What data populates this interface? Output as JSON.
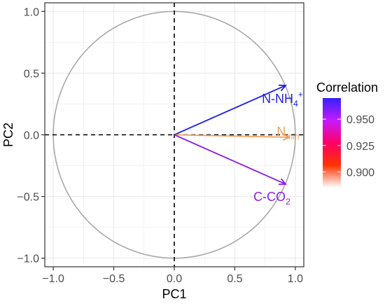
{
  "chart_data": {
    "type": "scatter",
    "subtype": "pca-correlation-circle",
    "xlabel": "PC1",
    "ylabel": "PC2",
    "xlim": [
      -1.07,
      1.07
    ],
    "ylim": [
      -1.07,
      1.07
    ],
    "x_ticks": [
      -1.0,
      -0.5,
      0.0,
      0.5,
      1.0
    ],
    "y_ticks": [
      -1.0,
      -0.5,
      0.0,
      0.5,
      1.0
    ],
    "x_tick_labels": [
      "−1.0",
      "−0.5",
      "0.0",
      "0.5",
      "1.0"
    ],
    "y_tick_labels": [
      "−1.0",
      "−0.5",
      "0.0",
      "0.5",
      "1.0"
    ],
    "grid": true,
    "unit_circle": true,
    "vectors": [
      {
        "label_base": "N-NH",
        "label_sub": "4",
        "label_sup": "+",
        "x": 0.92,
        "y": 0.4,
        "correlation": 0.968,
        "color": "#1f1fe6"
      },
      {
        "label_base": "N",
        "label_sub": "min",
        "label_sup": "",
        "x": 0.95,
        "y": -0.02,
        "correlation": 0.89,
        "color": "#f2a05a"
      },
      {
        "label_base": "C-CO",
        "label_sub": "2",
        "label_sup": "",
        "x": 0.92,
        "y": -0.4,
        "correlation": 0.962,
        "color": "#8a1ee8"
      }
    ],
    "legend": {
      "title": "Correlation",
      "position": "right",
      "min": 0.885,
      "max": 0.97,
      "ticks": [
        0.95,
        0.925,
        0.9
      ],
      "tick_labels": [
        "0.950",
        "0.925",
        "0.900"
      ],
      "colors": [
        "#ffffff",
        "#ff3300",
        "#ff0066",
        "#c41aff",
        "#3322ff"
      ]
    },
    "colors": {
      "panel_border": "#333333",
      "grid": "#ebebeb",
      "circle": "#a9a9a9",
      "reference_lines": "#000000",
      "tick_text": "#4d4d4d",
      "axis_title": "#000000"
    }
  }
}
